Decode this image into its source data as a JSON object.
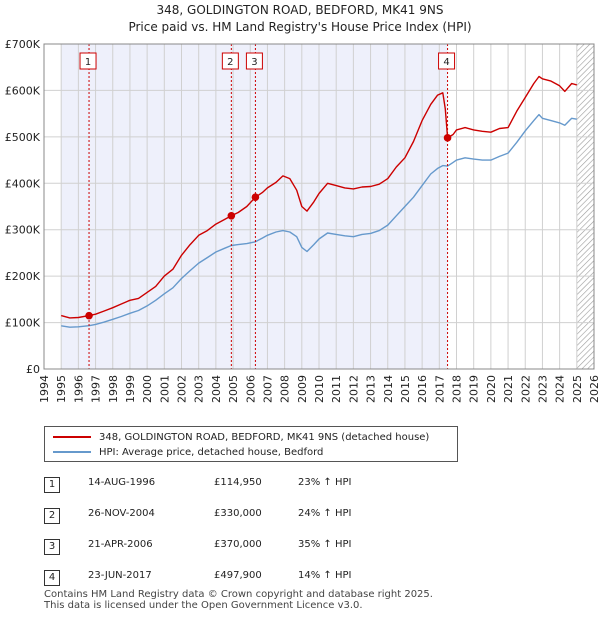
{
  "chart_data": {
    "type": "line",
    "title": "348, GOLDINGTON ROAD, BEDFORD, MK41 9NS",
    "subtitle": "Price paid vs. HM Land Registry's House Price Index (HPI)",
    "x_range": [
      1994,
      2026
    ],
    "ylim": [
      0,
      700000
    ],
    "y_ticks": [
      0,
      100000,
      200000,
      300000,
      400000,
      500000,
      600000,
      700000
    ],
    "y_tick_labels": [
      "£0",
      "£100K",
      "£200K",
      "£300K",
      "£400K",
      "£500K",
      "£600K",
      "£700K"
    ],
    "x_ticks": [
      "1994",
      "1995",
      "1996",
      "1997",
      "1998",
      "1999",
      "2000",
      "2001",
      "2002",
      "2003",
      "2004",
      "2005",
      "2006",
      "2007",
      "2008",
      "2009",
      "2010",
      "2011",
      "2012",
      "2013",
      "2014",
      "2015",
      "2016",
      "2017",
      "2018",
      "2019",
      "2020",
      "2021",
      "2022",
      "2023",
      "2024",
      "2025",
      "2026"
    ],
    "shaded_period": [
      1995.0,
      2017.48
    ],
    "hatched_from": 2025.0,
    "series": [
      {
        "name": "348, GOLDINGTON ROAD, BEDFORD, MK41 9NS (detached house)",
        "color": "#cc0000",
        "points": [
          [
            1995.0,
            115000
          ],
          [
            1995.5,
            110000
          ],
          [
            1996.0,
            111000
          ],
          [
            1996.62,
            114950
          ],
          [
            1997.0,
            118000
          ],
          [
            1997.5,
            125000
          ],
          [
            1998.0,
            132000
          ],
          [
            1998.5,
            140000
          ],
          [
            1999.0,
            148000
          ],
          [
            1999.5,
            152000
          ],
          [
            2000.0,
            165000
          ],
          [
            2000.5,
            178000
          ],
          [
            2001.0,
            200000
          ],
          [
            2001.5,
            215000
          ],
          [
            2002.0,
            245000
          ],
          [
            2002.5,
            268000
          ],
          [
            2003.0,
            288000
          ],
          [
            2003.5,
            298000
          ],
          [
            2004.0,
            312000
          ],
          [
            2004.5,
            322000
          ],
          [
            2004.9,
            330000
          ],
          [
            2005.3,
            337000
          ],
          [
            2005.8,
            350000
          ],
          [
            2006.3,
            370000
          ],
          [
            2006.7,
            380000
          ],
          [
            2007.0,
            390000
          ],
          [
            2007.5,
            402000
          ],
          [
            2007.9,
            416000
          ],
          [
            2008.3,
            410000
          ],
          [
            2008.7,
            385000
          ],
          [
            2009.0,
            350000
          ],
          [
            2009.3,
            340000
          ],
          [
            2009.7,
            360000
          ],
          [
            2010.0,
            378000
          ],
          [
            2010.5,
            400000
          ],
          [
            2011.0,
            395000
          ],
          [
            2011.5,
            390000
          ],
          [
            2012.0,
            388000
          ],
          [
            2012.5,
            392000
          ],
          [
            2013.0,
            393000
          ],
          [
            2013.5,
            398000
          ],
          [
            2014.0,
            410000
          ],
          [
            2014.5,
            435000
          ],
          [
            2015.0,
            455000
          ],
          [
            2015.5,
            490000
          ],
          [
            2016.0,
            535000
          ],
          [
            2016.5,
            570000
          ],
          [
            2016.9,
            590000
          ],
          [
            2017.2,
            595000
          ],
          [
            2017.35,
            560000
          ],
          [
            2017.48,
            497900
          ],
          [
            2017.8,
            505000
          ],
          [
            2018.0,
            515000
          ],
          [
            2018.5,
            520000
          ],
          [
            2019.0,
            515000
          ],
          [
            2019.5,
            512000
          ],
          [
            2020.0,
            510000
          ],
          [
            2020.5,
            518000
          ],
          [
            2021.0,
            520000
          ],
          [
            2021.5,
            555000
          ],
          [
            2022.0,
            585000
          ],
          [
            2022.5,
            615000
          ],
          [
            2022.8,
            630000
          ],
          [
            2023.0,
            625000
          ],
          [
            2023.5,
            620000
          ],
          [
            2024.0,
            610000
          ],
          [
            2024.3,
            598000
          ],
          [
            2024.7,
            615000
          ],
          [
            2025.0,
            612000
          ]
        ]
      },
      {
        "name": "HPI: Average price, detached house, Bedford",
        "color": "#6699cc",
        "points": [
          [
            1995.0,
            93000
          ],
          [
            1995.5,
            90000
          ],
          [
            1996.0,
            91000
          ],
          [
            1996.62,
            93300
          ],
          [
            1997.0,
            96000
          ],
          [
            1997.5,
            101000
          ],
          [
            1998.0,
            107000
          ],
          [
            1998.5,
            113000
          ],
          [
            1999.0,
            120000
          ],
          [
            1999.5,
            126000
          ],
          [
            2000.0,
            136000
          ],
          [
            2000.5,
            148000
          ],
          [
            2001.0,
            162000
          ],
          [
            2001.5,
            175000
          ],
          [
            2002.0,
            195000
          ],
          [
            2002.5,
            212000
          ],
          [
            2003.0,
            228000
          ],
          [
            2003.5,
            240000
          ],
          [
            2004.0,
            252000
          ],
          [
            2004.5,
            260000
          ],
          [
            2004.9,
            266000
          ],
          [
            2005.3,
            268000
          ],
          [
            2005.8,
            270000
          ],
          [
            2006.3,
            274000
          ],
          [
            2006.7,
            282000
          ],
          [
            2007.0,
            288000
          ],
          [
            2007.5,
            295000
          ],
          [
            2007.9,
            298000
          ],
          [
            2008.3,
            295000
          ],
          [
            2008.7,
            285000
          ],
          [
            2009.0,
            262000
          ],
          [
            2009.3,
            253000
          ],
          [
            2009.7,
            268000
          ],
          [
            2010.0,
            280000
          ],
          [
            2010.5,
            293000
          ],
          [
            2011.0,
            290000
          ],
          [
            2011.5,
            287000
          ],
          [
            2012.0,
            285000
          ],
          [
            2012.5,
            290000
          ],
          [
            2013.0,
            292000
          ],
          [
            2013.5,
            298000
          ],
          [
            2014.0,
            310000
          ],
          [
            2014.5,
            330000
          ],
          [
            2015.0,
            350000
          ],
          [
            2015.5,
            370000
          ],
          [
            2016.0,
            395000
          ],
          [
            2016.5,
            420000
          ],
          [
            2016.9,
            432000
          ],
          [
            2017.2,
            438000
          ],
          [
            2017.48,
            437000
          ],
          [
            2017.8,
            445000
          ],
          [
            2018.0,
            450000
          ],
          [
            2018.5,
            455000
          ],
          [
            2019.0,
            452000
          ],
          [
            2019.5,
            450000
          ],
          [
            2020.0,
            450000
          ],
          [
            2020.5,
            458000
          ],
          [
            2021.0,
            465000
          ],
          [
            2021.5,
            488000
          ],
          [
            2022.0,
            513000
          ],
          [
            2022.5,
            535000
          ],
          [
            2022.8,
            548000
          ],
          [
            2023.0,
            540000
          ],
          [
            2023.5,
            535000
          ],
          [
            2024.0,
            530000
          ],
          [
            2024.3,
            525000
          ],
          [
            2024.7,
            540000
          ],
          [
            2025.0,
            538000
          ]
        ]
      }
    ],
    "markers": [
      {
        "label": "1",
        "x": 1996.62,
        "y": 114950
      },
      {
        "label": "2",
        "x": 2004.9,
        "y": 330000
      },
      {
        "label": "3",
        "x": 2006.3,
        "y": 370000
      },
      {
        "label": "4",
        "x": 2017.48,
        "y": 497900
      }
    ]
  },
  "legend": {
    "entries": [
      {
        "label": "348, GOLDINGTON ROAD, BEDFORD, MK41 9NS (detached house)",
        "color": "#cc0000"
      },
      {
        "label": "HPI: Average price, detached house, Bedford",
        "color": "#6699cc"
      }
    ]
  },
  "sales": [
    {
      "num": "1",
      "date": "14-AUG-1996",
      "price": "£114,950",
      "hpi": "23% ↑ HPI"
    },
    {
      "num": "2",
      "date": "26-NOV-2004",
      "price": "£330,000",
      "hpi": "24% ↑ HPI"
    },
    {
      "num": "3",
      "date": "21-APR-2006",
      "price": "£370,000",
      "hpi": "35% ↑ HPI"
    },
    {
      "num": "4",
      "date": "23-JUN-2017",
      "price": "£497,900",
      "hpi": "14% ↑ HPI"
    }
  ],
  "footer": {
    "line1": "Contains HM Land Registry data © Crown copyright and database right 2025.",
    "line2": "This data is licensed under the Open Government Licence v3.0."
  }
}
